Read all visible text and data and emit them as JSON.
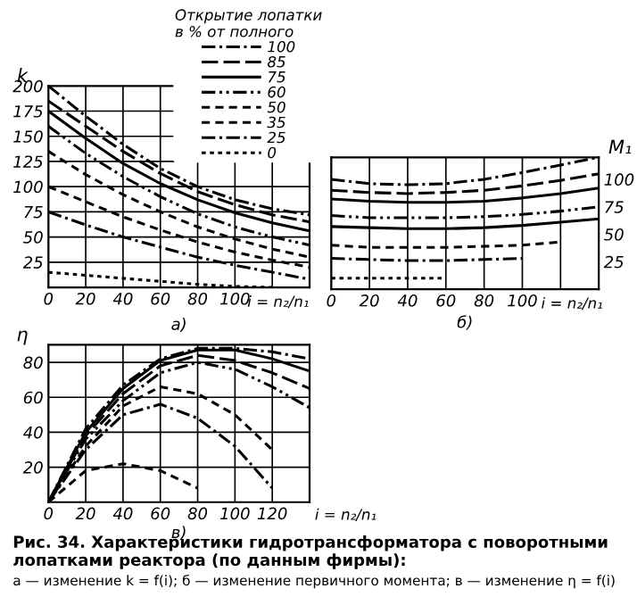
{
  "chart_data": [
    {
      "type": "line",
      "ylabel": "k",
      "xlabel": "i = n₂/n₁",
      "legend_title": "Открытие лопатки\nв % от полного",
      "legend": "top right",
      "grid": true,
      "x": [
        0,
        20,
        40,
        60,
        80,
        100,
        120,
        140
      ],
      "xlim": [
        0,
        140
      ],
      "xticks": [
        0,
        20,
        40,
        60,
        80,
        100,
        {
          "value": 120,
          "label": null
        }
      ],
      "ylim": [
        0,
        200
      ],
      "yticks": [
        25,
        50,
        75,
        100,
        125,
        150,
        175,
        200
      ],
      "annotations": [
        "а)"
      ],
      "series": [
        {
          "name": "100",
          "color": "#000000",
          "line_style": "dashdot",
          "values": [
            200,
            170,
            142,
            118,
            100,
            87,
            78,
            72
          ]
        },
        {
          "name": "85",
          "color": "#000000",
          "line_style": "longdash",
          "values": [
            185,
            160,
            135,
            113,
            95,
            82,
            72,
            65
          ]
        },
        {
          "name": "75",
          "color": "#000000",
          "line_style": "solid",
          "values": [
            175,
            148,
            123,
            103,
            87,
            74,
            64,
            56
          ]
        },
        {
          "name": "60",
          "color": "#000000",
          "line_style": "dashdotdot",
          "values": [
            160,
            133,
            110,
            90,
            73,
            60,
            50,
            42
          ]
        },
        {
          "name": "50",
          "color": "#000000",
          "line_style": "dashed",
          "values": [
            135,
            112,
            92,
            75,
            60,
            48,
            38,
            30
          ]
        },
        {
          "name": "35",
          "color": "#000000",
          "line_style": "dashed",
          "values": [
            100,
            85,
            70,
            57,
            45,
            35,
            27,
            20
          ]
        },
        {
          "name": "25",
          "color": "#000000",
          "line_style": "dashdot",
          "values": [
            75,
            62,
            50,
            40,
            30,
            22,
            15,
            8
          ]
        },
        {
          "name": "0",
          "color": "#000000",
          "line_style": "dotted",
          "values": [
            15,
            12,
            9,
            6,
            3,
            1,
            0,
            null
          ]
        }
      ]
    },
    {
      "type": "line",
      "ylabel": "M₁",
      "xlabel": "i = n₂/n₁",
      "grid": "x",
      "x": [
        0,
        20,
        40,
        60,
        80,
        100,
        120,
        140
      ],
      "xlim": [
        0,
        140
      ],
      "xticks": [
        0,
        20,
        40,
        60,
        80,
        100,
        {
          "value": 120,
          "label": null
        }
      ],
      "ylim": [
        0,
        120
      ],
      "yticks": [
        25,
        50,
        75,
        100
      ],
      "annotations": [
        "б)"
      ],
      "series": [
        {
          "color": "#000000",
          "line_style": "dashdot",
          "values": [
            100,
            96,
            95,
            96,
            100,
            106,
            113,
            120
          ]
        },
        {
          "color": "#000000",
          "line_style": "longdash",
          "values": [
            90,
            88,
            87,
            88,
            90,
            94,
            99,
            105
          ]
        },
        {
          "color": "#000000",
          "line_style": "solid",
          "values": [
            82,
            80,
            79,
            79,
            80,
            83,
            87,
            92
          ]
        },
        {
          "color": "#000000",
          "line_style": "dashdotdot",
          "values": [
            67,
            65,
            65,
            65,
            66,
            68,
            71,
            75
          ]
        },
        {
          "color": "#000000",
          "line_style": "solid",
          "values": [
            57,
            56,
            55,
            55,
            56,
            58,
            61,
            64
          ]
        },
        {
          "color": "#000000",
          "line_style": "dashed",
          "values": [
            40,
            38,
            38,
            38,
            39,
            40,
            43,
            null
          ]
        },
        {
          "color": "#000000",
          "line_style": "dashdot",
          "values": [
            28,
            27,
            26,
            26,
            27,
            28,
            null,
            null
          ]
        },
        {
          "color": "#000000",
          "line_style": "dotted",
          "values": [
            10,
            10,
            10,
            10,
            null,
            null,
            null,
            null
          ]
        }
      ]
    },
    {
      "type": "line",
      "ylabel": "η",
      "xlabel": "i = n₂/n₁",
      "grid": true,
      "x": [
        0,
        20,
        40,
        60,
        80,
        100,
        120,
        140
      ],
      "xlim": [
        0,
        140
      ],
      "xticks": [
        0,
        20,
        40,
        60,
        80,
        100,
        120
      ],
      "ylim": [
        0,
        90
      ],
      "yticks": [
        20,
        40,
        60,
        80
      ],
      "annotations": [
        "в)",
        "Рис. 34. Характеристики гидротрансформатора с поворотными лопатками реактора (по данным фирмы):",
        "а — изменение k = f(i); б — изменение первичного момента; в — изменение η = f(i)"
      ],
      "series": [
        {
          "color": "#000000",
          "line_style": "dashdot",
          "values": [
            0,
            42,
            67,
            82,
            88,
            88,
            86,
            82
          ]
        },
        {
          "color": "#000000",
          "line_style": "solid",
          "values": [
            0,
            40,
            65,
            81,
            87,
            87,
            82,
            75
          ]
        },
        {
          "color": "#000000",
          "line_style": "longdash",
          "values": [
            0,
            38,
            62,
            78,
            84,
            81,
            74,
            65
          ]
        },
        {
          "color": "#000000",
          "line_style": "dashdotdot",
          "values": [
            0,
            36,
            58,
            74,
            80,
            76,
            66,
            54
          ]
        },
        {
          "color": "#000000",
          "line_style": "dashed",
          "values": [
            0,
            32,
            55,
            66,
            62,
            50,
            30,
            null
          ]
        },
        {
          "color": "#000000",
          "line_style": "dashdot",
          "values": [
            0,
            30,
            50,
            56,
            48,
            32,
            8,
            null
          ]
        },
        {
          "color": "#000000",
          "line_style": "dashed",
          "values": [
            0,
            18,
            22,
            18,
            8,
            null,
            null,
            null
          ]
        }
      ]
    }
  ]
}
